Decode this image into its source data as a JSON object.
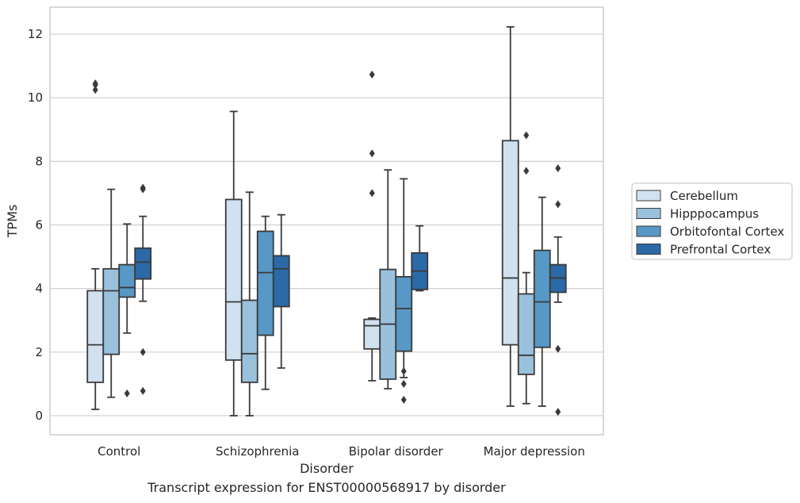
{
  "caption": "Transcript expression for ENST00000568917 by disorder",
  "chart_data": {
    "type": "box",
    "xlabel": "Disorder",
    "ylabel": "TPMs",
    "ylim": [
      -0.6,
      12.85
    ],
    "yticks": [
      0,
      2,
      4,
      6,
      8,
      10,
      12
    ],
    "grid": "horizontal",
    "legend_placement": "center-right outside",
    "categories": [
      "Control",
      "Schizophrenia",
      "Bipolar disorder",
      "Major depression"
    ],
    "series": [
      {
        "name": "Cerebellum",
        "color": "#d1e1f0",
        "boxes": [
          {
            "whisker_low": 0.2,
            "q1": 1.05,
            "median": 2.23,
            "q3": 3.93,
            "whisker_high": 4.62,
            "outliers": [
              10.25,
              10.4,
              10.45
            ]
          },
          {
            "whisker_low": 0.0,
            "q1": 1.75,
            "median": 3.58,
            "q3": 6.8,
            "whisker_high": 9.57,
            "outliers": []
          },
          {
            "whisker_low": 1.1,
            "q1": 2.1,
            "median": 2.83,
            "q3": 3.03,
            "whisker_high": 3.07,
            "outliers": [
              7.0,
              8.25,
              10.73
            ]
          },
          {
            "whisker_low": 0.3,
            "q1": 2.23,
            "median": 4.33,
            "q3": 8.65,
            "whisker_high": 12.23,
            "outliers": []
          }
        ]
      },
      {
        "name": "Hipppocampus",
        "color": "#9ac1dc",
        "boxes": [
          {
            "whisker_low": 0.58,
            "q1": 1.93,
            "median": 3.93,
            "q3": 4.62,
            "whisker_high": 7.12,
            "outliers": []
          },
          {
            "whisker_low": 0.0,
            "q1": 1.05,
            "median": 1.95,
            "q3": 3.63,
            "whisker_high": 7.03,
            "outliers": []
          },
          {
            "whisker_low": 0.85,
            "q1": 1.15,
            "median": 2.88,
            "q3": 4.6,
            "whisker_high": 7.73,
            "outliers": []
          },
          {
            "whisker_low": 0.38,
            "q1": 1.3,
            "median": 1.9,
            "q3": 3.83,
            "whisker_high": 4.5,
            "outliers": [
              7.7,
              8.82
            ]
          }
        ]
      },
      {
        "name": "Orbitofontal Cortex",
        "color": "#5898c6",
        "boxes": [
          {
            "whisker_low": 2.6,
            "q1": 3.73,
            "median": 4.03,
            "q3": 4.75,
            "whisker_high": 6.03,
            "outliers": [
              0.7
            ]
          },
          {
            "whisker_low": 0.83,
            "q1": 2.53,
            "median": 4.5,
            "q3": 5.8,
            "whisker_high": 6.27,
            "outliers": []
          },
          {
            "whisker_low": 1.2,
            "q1": 2.03,
            "median": 3.37,
            "q3": 4.37,
            "whisker_high": 7.45,
            "outliers": [
              0.5,
              1.0,
              1.4
            ]
          },
          {
            "whisker_low": 0.3,
            "q1": 2.15,
            "median": 3.58,
            "q3": 5.2,
            "whisker_high": 6.87,
            "outliers": []
          }
        ]
      },
      {
        "name": "Prefrontal Cortex",
        "color": "#2b69a7",
        "boxes": [
          {
            "whisker_low": 3.6,
            "q1": 4.3,
            "median": 4.83,
            "q3": 5.27,
            "whisker_high": 6.27,
            "outliers": [
              0.78,
              2.0,
              7.12,
              7.17
            ]
          },
          {
            "whisker_low": 1.5,
            "q1": 3.43,
            "median": 4.62,
            "q3": 5.03,
            "whisker_high": 6.32,
            "outliers": []
          },
          {
            "whisker_low": 3.93,
            "q1": 3.97,
            "median": 4.55,
            "q3": 5.12,
            "whisker_high": 5.97,
            "outliers": []
          },
          {
            "whisker_low": 3.57,
            "q1": 3.88,
            "median": 4.33,
            "q3": 4.75,
            "whisker_high": 5.62,
            "outliers": [
              0.12,
              2.1,
              6.65,
              7.78
            ]
          }
        ]
      }
    ]
  }
}
